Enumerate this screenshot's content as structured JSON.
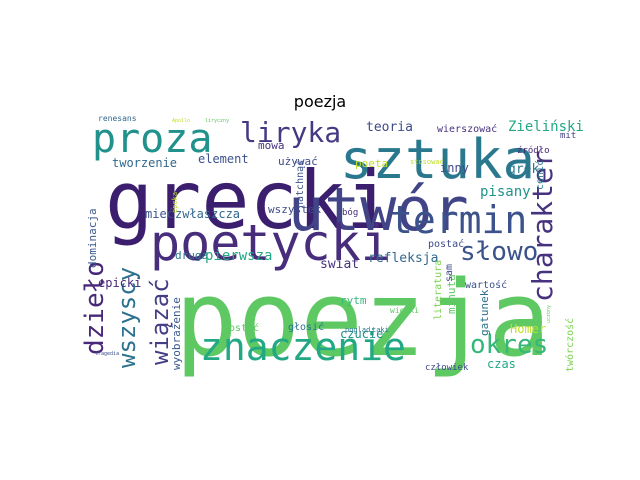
{
  "title": "poezja",
  "words": [
    {
      "text": "poezja",
      "color": "#5ec962"
    },
    {
      "text": "grecki",
      "color": "#3b1f6e"
    },
    {
      "text": "utwór",
      "color": "#414487"
    },
    {
      "text": "sztuka",
      "color": "#2a788e"
    },
    {
      "text": "poetycki",
      "color": "#472d7b"
    },
    {
      "text": "proza",
      "color": "#21918c"
    },
    {
      "text": "termin",
      "color": "#3b528b"
    },
    {
      "text": "znaczenie",
      "color": "#22a884"
    },
    {
      "text": "liryka",
      "color": "#443a83"
    },
    {
      "text": "charakter",
      "color": "#46327e"
    },
    {
      "text": "słowo",
      "color": "#3b528b"
    },
    {
      "text": "okres",
      "color": "#35b779"
    },
    {
      "text": "dzieło",
      "color": "#482878"
    },
    {
      "text": "wszyscy",
      "color": "#2c728e"
    },
    {
      "text": "wiązać",
      "color": "#433e85"
    },
    {
      "text": "teoria",
      "color": "#3e4a89"
    },
    {
      "text": "Zieliński",
      "color": "#22a884"
    },
    {
      "text": "tworzenie",
      "color": "#31688e"
    },
    {
      "text": "element",
      "color": "#3b528b"
    },
    {
      "text": "używać",
      "color": "#3e4a89"
    },
    {
      "text": "mowa",
      "color": "#46327e"
    },
    {
      "text": "poeta",
      "color": "#bddf26"
    },
    {
      "text": "grek",
      "color": "#2a788e"
    },
    {
      "text": "inny",
      "color": "#3e4a89"
    },
    {
      "text": "pisany",
      "color": "#21918c"
    },
    {
      "text": "mieć",
      "color": "#3b528b"
    },
    {
      "text": "zwłaszcza",
      "color": "#31688e"
    },
    {
      "text": "wszystek",
      "color": "#3e4a89"
    },
    {
      "text": "dominacja",
      "color": "#38598c"
    },
    {
      "text": "epicki",
      "color": "#482878"
    },
    {
      "text": "druga",
      "color": "#2a788e"
    },
    {
      "text": "pierwsza",
      "color": "#22a884"
    },
    {
      "text": "świat",
      "color": "#46327e"
    },
    {
      "text": "refleksja",
      "color": "#31688e"
    },
    {
      "text": "postać",
      "color": "#3e4a89"
    },
    {
      "text": "wartość",
      "color": "#3b528b"
    },
    {
      "text": "gatunek",
      "color": "#2c728e"
    },
    {
      "text": "rytm",
      "color": "#35b779"
    },
    {
      "text": "czucie",
      "color": "#21918c"
    },
    {
      "text": "minuta",
      "color": "#5ec962"
    },
    {
      "text": "Homer",
      "color": "#bddf26"
    },
    {
      "text": "czas",
      "color": "#22a884"
    },
    {
      "text": "wyobrażenie",
      "color": "#38598c"
    },
    {
      "text": "zostać",
      "color": "#5ec962"
    },
    {
      "text": "głosić",
      "color": "#2c728e"
    },
    {
      "text": "człowiek",
      "color": "#3e4a89"
    },
    {
      "text": "literatura",
      "color": "#7ad151"
    },
    {
      "text": "twórczość",
      "color": "#7ad151"
    },
    {
      "text": "wierszować",
      "color": "#46327e"
    },
    {
      "text": "renesans",
      "color": "#31688e"
    },
    {
      "text": "natchnąć",
      "color": "#3b528b"
    },
    {
      "text": "źródło",
      "color": "#482878"
    },
    {
      "text": "mit",
      "color": "#433e85"
    },
    {
      "text": "cenić",
      "color": "#2a788e"
    },
    {
      "text": "bóg",
      "color": "#46327e"
    },
    {
      "text": "wielki",
      "color": "#5ec962"
    },
    {
      "text": "pogląd",
      "color": "#2a788e"
    },
    {
      "text": "taki",
      "color": "#2a788e"
    },
    {
      "text": "sam",
      "color": "#3e4a89"
    },
    {
      "text": "epoka",
      "color": "#bddf26"
    },
    {
      "text": "stosować",
      "color": "#bddf26"
    },
    {
      "text": "Apollo",
      "color": "#bddf26"
    },
    {
      "text": "liryczny",
      "color": "#5ec962"
    },
    {
      "text": "tragedia",
      "color": "#3e4a89"
    },
    {
      "text": "uczony",
      "color": "#5ec962"
    }
  ]
}
